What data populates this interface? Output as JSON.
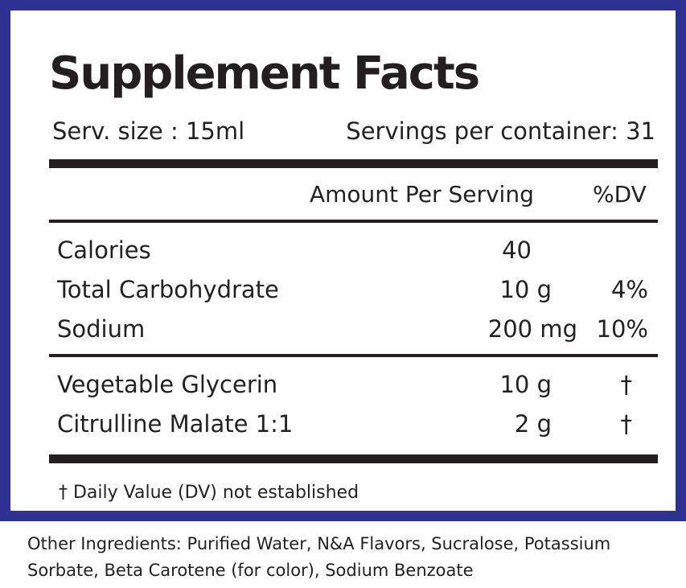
{
  "panel": {
    "title": "Supplement Facts",
    "serving_size": "Serv. size : 15ml",
    "servings_per_container": "Servings per container: 31",
    "col_amount": "Amount Per Serving",
    "col_dv": "%DV",
    "nutrients": [
      {
        "name": "Calories",
        "amount": "40",
        "dv": ""
      },
      {
        "name": "Total Carbohydrate",
        "amount": "10 g",
        "dv": "4%"
      },
      {
        "name": "Sodium",
        "amount": "200 mg",
        "dv": "10%"
      }
    ],
    "ingredients": [
      {
        "name": "Vegetable Glycerin",
        "amount": "10 g",
        "dv": "†"
      },
      {
        "name": "Citrulline Malate 1:1",
        "amount": "2 g",
        "dv": "†"
      }
    ],
    "footnote": "† Daily Value (DV) not established"
  },
  "other_ingredients": "Other Ingredients: Purified Water, N&A Flavors, Sucralose, Potassium Sorbate, Beta Carotene (for color), Sodium Benzoate",
  "colors": {
    "border": "#2e3192",
    "text": "#231f20",
    "background": "#ffffff"
  }
}
